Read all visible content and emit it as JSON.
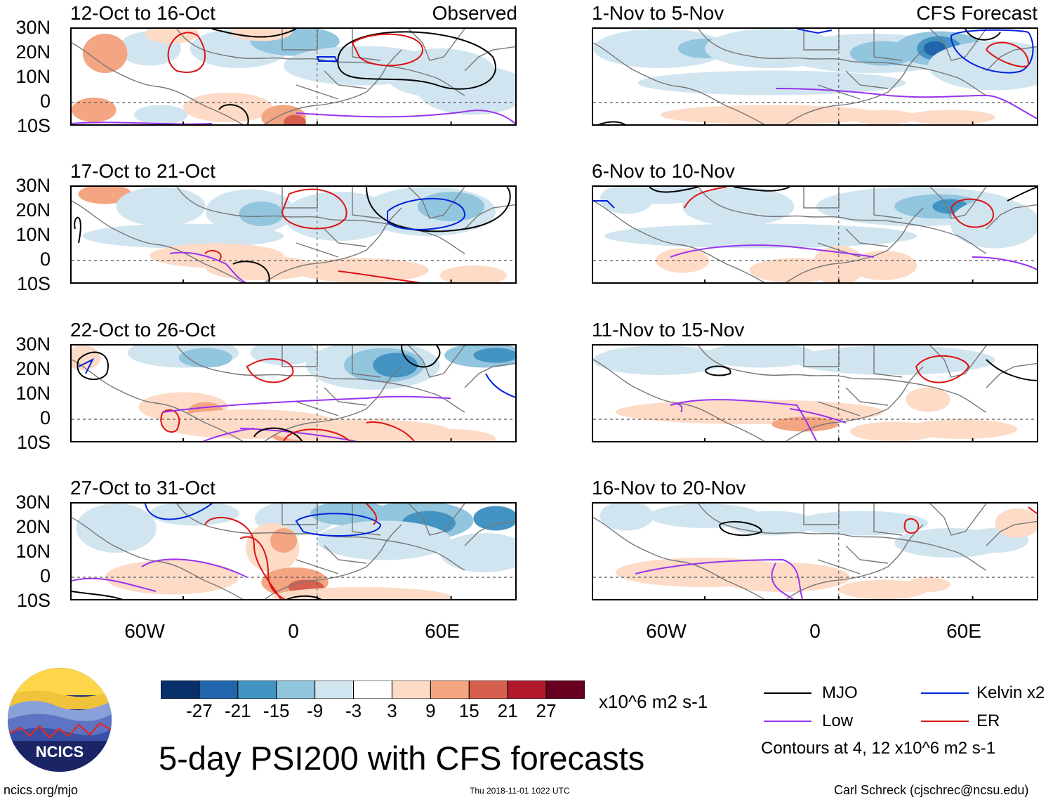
{
  "chart_data": {
    "type": "heatmap",
    "title": "5-day PSI200 with CFS forecasts",
    "variable": "PSI200 anomaly",
    "units": "x10^6 m2 s-1",
    "lat_ticks": [
      "30N",
      "20N",
      "10N",
      "0",
      "10S"
    ],
    "lon_ticks": [
      "60W",
      "0",
      "60E"
    ],
    "colorbar": {
      "levels": [
        -27,
        -21,
        -15,
        -9,
        -3,
        3,
        9,
        15,
        21,
        27
      ],
      "tick_labels": [
        "-27",
        "-21",
        "-15",
        "-9",
        "-3",
        "3",
        "9",
        "15",
        "21",
        "27"
      ],
      "colors": [
        "#08306b",
        "#2166ac",
        "#4393c3",
        "#92c5de",
        "#d1e5f0",
        "#ffffff",
        "#fddbc7",
        "#f4a582",
        "#d6604d",
        "#b2182b",
        "#67001f"
      ]
    },
    "columns": [
      {
        "tag": "Observed",
        "panels": [
          "12-Oct to 16-Oct",
          "17-Oct to 21-Oct",
          "22-Oct to 26-Oct",
          "27-Oct to 31-Oct"
        ]
      },
      {
        "tag": "CFS Forecast",
        "panels": [
          "1-Nov to 5-Nov",
          "6-Nov to 10-Nov",
          "11-Nov to 15-Nov",
          "16-Nov to 20-Nov"
        ]
      }
    ],
    "contours": {
      "note": "Contours at 4, 12 x10^6 m2 s-1",
      "levels": [
        4,
        12
      ],
      "series": [
        {
          "name": "MJO",
          "color": "#000000"
        },
        {
          "name": "Kelvin x2",
          "color": "#0022dd"
        },
        {
          "name": "Low",
          "color": "#9933ee"
        },
        {
          "name": "ER",
          "color": "#dd1111"
        }
      ]
    }
  },
  "logo": {
    "text": "NCICS"
  },
  "footer": {
    "site": "ncics.org/mjo",
    "timestamp": "Thu 2018-11-01 1022 UTC",
    "author": "Carl Schreck (cjschrec@ncsu.edu)"
  }
}
